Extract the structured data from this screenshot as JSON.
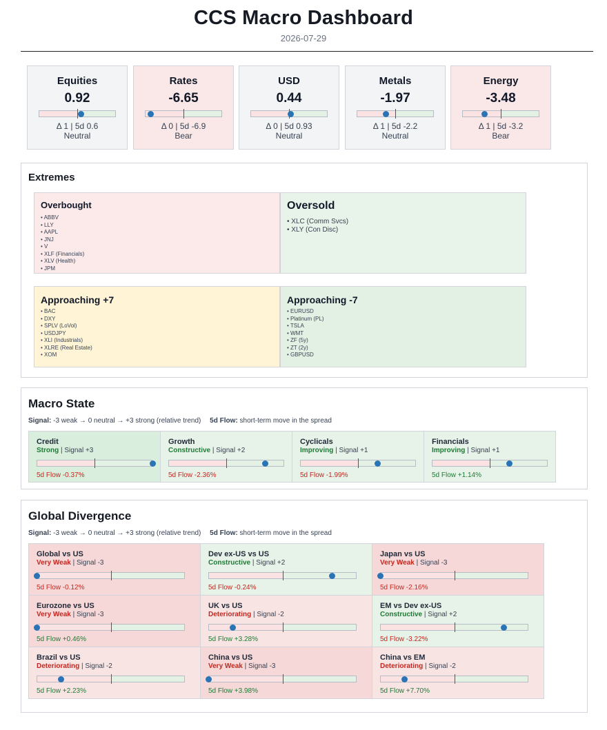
{
  "header": {
    "title": "CCS Macro Dashboard",
    "date": "2026-07-29"
  },
  "cards": [
    {
      "name": "Equities",
      "value": "0.92",
      "level": 0.55,
      "delta": "Δ 1 | 5d 0.6",
      "state": "Neutral"
    },
    {
      "name": "Rates",
      "value": "-6.65",
      "level": 0.08,
      "delta": "Δ 0 | 5d -6.9",
      "state": "Bear"
    },
    {
      "name": "USD",
      "value": "0.44",
      "level": 0.52,
      "delta": "Δ 0 | 5d 0.93",
      "state": "Neutral"
    },
    {
      "name": "Metals",
      "value": "-1.97",
      "level": 0.38,
      "delta": "Δ 1 | 5d -2.2",
      "state": "Neutral"
    },
    {
      "name": "Energy",
      "value": "-3.48",
      "level": 0.29,
      "delta": "Δ 1 | 5d -3.2",
      "state": "Bear"
    }
  ],
  "extremes": {
    "title": "Extremes",
    "overbought": {
      "title": "Overbought",
      "items": [
        "• ABBV",
        "• LLY",
        "• AAPL",
        "• JNJ",
        "• V",
        "• XLF (Financials)",
        "• XLV (Health)",
        "• JPM"
      ]
    },
    "oversold": {
      "title": "Oversold",
      "items": [
        "• XLC (Comm Svcs)",
        "• XLY (Con Disc)"
      ]
    },
    "approaching_pos": {
      "title": "Approaching +7",
      "items": [
        "• BAC",
        "• DXY",
        "• SPLV (LoVol)",
        "• USDJPY",
        "• XLI (Industrials)",
        "• XLRE (Real Estate)",
        "• XOM"
      ]
    },
    "approaching_neg": {
      "title": "Approaching -7",
      "items": [
        "• EURUSD",
        "• Platinum (PL)",
        "• TSLA",
        "• WMT",
        "• ZF (5y)",
        "• ZT (2y)",
        "• GBPUSD"
      ]
    }
  },
  "legend": {
    "signal_label": "Signal:",
    "signal_text": "-3 weak → 0 neutral → +3 strong (relative trend)",
    "flow_label": "5d Flow:",
    "flow_text": "short-term move in the spread"
  },
  "macro_state": {
    "title": "Macro State",
    "items": [
      {
        "name": "Credit",
        "label": "Strong",
        "signal": "| Signal +3",
        "signal_value": 3,
        "flow": "5d Flow -0.37%",
        "flow_dir": "neg"
      },
      {
        "name": "Growth",
        "label": "Constructive",
        "signal": "| Signal +2",
        "signal_value": 2,
        "flow": "5d Flow -2.36%",
        "flow_dir": "neg"
      },
      {
        "name": "Cyclicals",
        "label": "Improving",
        "signal": "| Signal +1",
        "signal_value": 1,
        "flow": "5d Flow -1.99%",
        "flow_dir": "neg"
      },
      {
        "name": "Financials",
        "label": "Improving",
        "signal": "| Signal +1",
        "signal_value": 1,
        "flow": "5d Flow +1.14%",
        "flow_dir": "pos"
      }
    ]
  },
  "divergence": {
    "title": "Global Divergence",
    "items": [
      {
        "name": "Global vs US",
        "label": "Very Weak",
        "signal": "| Signal -3",
        "signal_value": -3,
        "flow": "5d Flow -0.12%",
        "flow_dir": "neg"
      },
      {
        "name": "Dev ex-US vs US",
        "label": "Constructive",
        "signal": "| Signal +2",
        "signal_value": 2,
        "flow": "5d Flow -0.24%",
        "flow_dir": "neg"
      },
      {
        "name": "Japan vs US",
        "label": "Very Weak",
        "signal": "| Signal -3",
        "signal_value": -3,
        "flow": "5d Flow -2.16%",
        "flow_dir": "neg"
      },
      {
        "name": "Eurozone vs US",
        "label": "Very Weak",
        "signal": "| Signal -3",
        "signal_value": -3,
        "flow": "5d Flow +0.46%",
        "flow_dir": "pos"
      },
      {
        "name": "UK vs US",
        "label": "Deteriorating",
        "signal": "| Signal -2",
        "signal_value": -2,
        "flow": "5d Flow +3.28%",
        "flow_dir": "pos"
      },
      {
        "name": "EM vs Dev ex-US",
        "label": "Constructive",
        "signal": "| Signal +2",
        "signal_value": 2,
        "flow": "5d Flow -3.22%",
        "flow_dir": "neg"
      },
      {
        "name": "Brazil vs US",
        "label": "Deteriorating",
        "signal": "| Signal -2",
        "signal_value": -2,
        "flow": "5d Flow +2.23%",
        "flow_dir": "pos"
      },
      {
        "name": "China vs US",
        "label": "Very Weak",
        "signal": "| Signal -3",
        "signal_value": -3,
        "flow": "5d Flow +3.98%",
        "flow_dir": "pos"
      },
      {
        "name": "China vs EM",
        "label": "Deteriorating",
        "signal": "| Signal -2",
        "signal_value": -2,
        "flow": "5d Flow +7.70%",
        "flow_dir": "pos"
      }
    ]
  }
}
